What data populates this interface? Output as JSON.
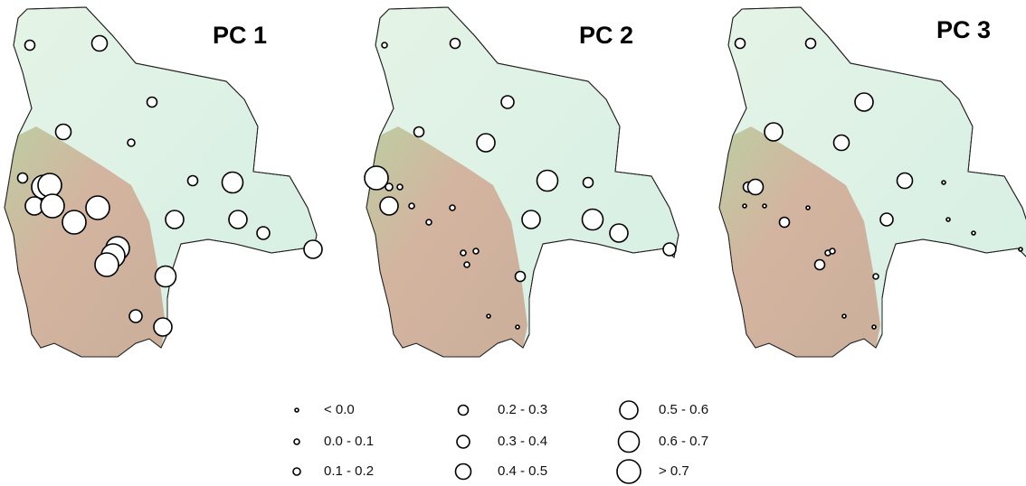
{
  "panels": [
    {
      "title": "PC 1"
    },
    {
      "title": "PC 2"
    },
    {
      "title": "PC 3"
    }
  ],
  "legend": {
    "items": [
      "< 0.0",
      "0.0 - 0.1",
      "0.1 - 0.2",
      "0.2 - 0.3",
      "0.3 - 0.4",
      "0.4 - 0.5",
      "0.5 - 0.6",
      "0.6 - 0.7",
      "> 0.7"
    ]
  }
}
